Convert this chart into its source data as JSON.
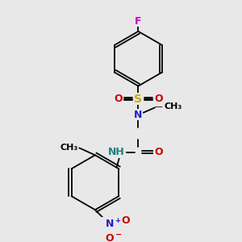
{
  "background_color": "#e8e8e8",
  "fig_size": [
    3.0,
    3.0
  ],
  "dpi": 100,
  "bond_lw": 1.3,
  "double_sep": 0.012,
  "font_size_atom": 9,
  "font_size_small": 7,
  "colors": {
    "C": "#000000",
    "N": "#2020cc",
    "O": "#cc0000",
    "S": "#ccaa00",
    "F": "#cc00cc",
    "NH": "#208080",
    "bond": "#000000"
  }
}
